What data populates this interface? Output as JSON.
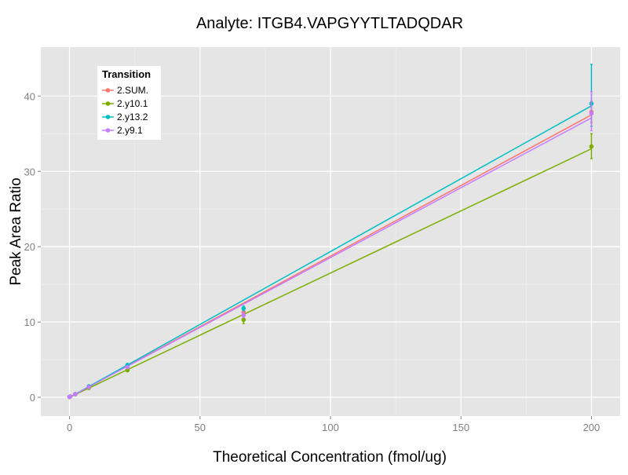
{
  "chart_data": {
    "type": "line",
    "title": "Analyte: ITGB4.VAPGYYTLTADQDAR",
    "xlabel": "Theoretical Concentration (fmol/ug)",
    "ylabel": "Peak Area Ratio",
    "xlim": [
      -11,
      211
    ],
    "ylim": [
      -2.5,
      46.5
    ],
    "xticks": [
      0,
      50,
      100,
      150,
      200
    ],
    "yticks": [
      0,
      10,
      20,
      30,
      40
    ],
    "grid": true,
    "legend": {
      "title": "Transition",
      "placement": "top-left"
    },
    "x": [
      0,
      0.25,
      2.2,
      7.4,
      22.2,
      66.7,
      200
    ],
    "series": [
      {
        "name": "2.SUM.",
        "color": "#F8766D",
        "slope": 0.1875,
        "intercept": 0,
        "values": [
          0.05,
          0.1,
          0.42,
          1.4,
          4.1,
          11.3,
          37.9
        ],
        "err_low": [
          null,
          null,
          null,
          null,
          null,
          11.0,
          36.5
        ],
        "err_high": [
          null,
          null,
          null,
          null,
          null,
          11.6,
          39.3
        ]
      },
      {
        "name": "2.y10.1",
        "color": "#7CAE00",
        "slope": 0.165,
        "intercept": 0,
        "values": [
          0.05,
          0.1,
          0.38,
          1.25,
          3.6,
          10.3,
          33.3
        ],
        "err_low": [
          null,
          null,
          null,
          null,
          null,
          9.8,
          31.7
        ],
        "err_high": [
          null,
          null,
          null,
          null,
          null,
          10.8,
          35.0
        ]
      },
      {
        "name": "2.y13.2",
        "color": "#00BFC4",
        "slope": 0.1935,
        "intercept": 0,
        "values": [
          0.05,
          0.1,
          0.43,
          1.45,
          4.3,
          11.8,
          39.0
        ],
        "err_low": [
          null,
          null,
          null,
          null,
          null,
          11.5,
          36.0
        ],
        "err_high": [
          null,
          null,
          null,
          null,
          null,
          12.1,
          44.2
        ]
      },
      {
        "name": "2.y9.1",
        "color": "#C77CFF",
        "slope": 0.1855,
        "intercept": 0,
        "values": [
          0.05,
          0.1,
          0.41,
          1.37,
          4.0,
          10.9,
          37.7
        ],
        "err_low": [
          null,
          null,
          null,
          null,
          null,
          10.6,
          35.4
        ],
        "err_high": [
          null,
          null,
          null,
          null,
          null,
          11.2,
          40.6
        ]
      }
    ]
  }
}
